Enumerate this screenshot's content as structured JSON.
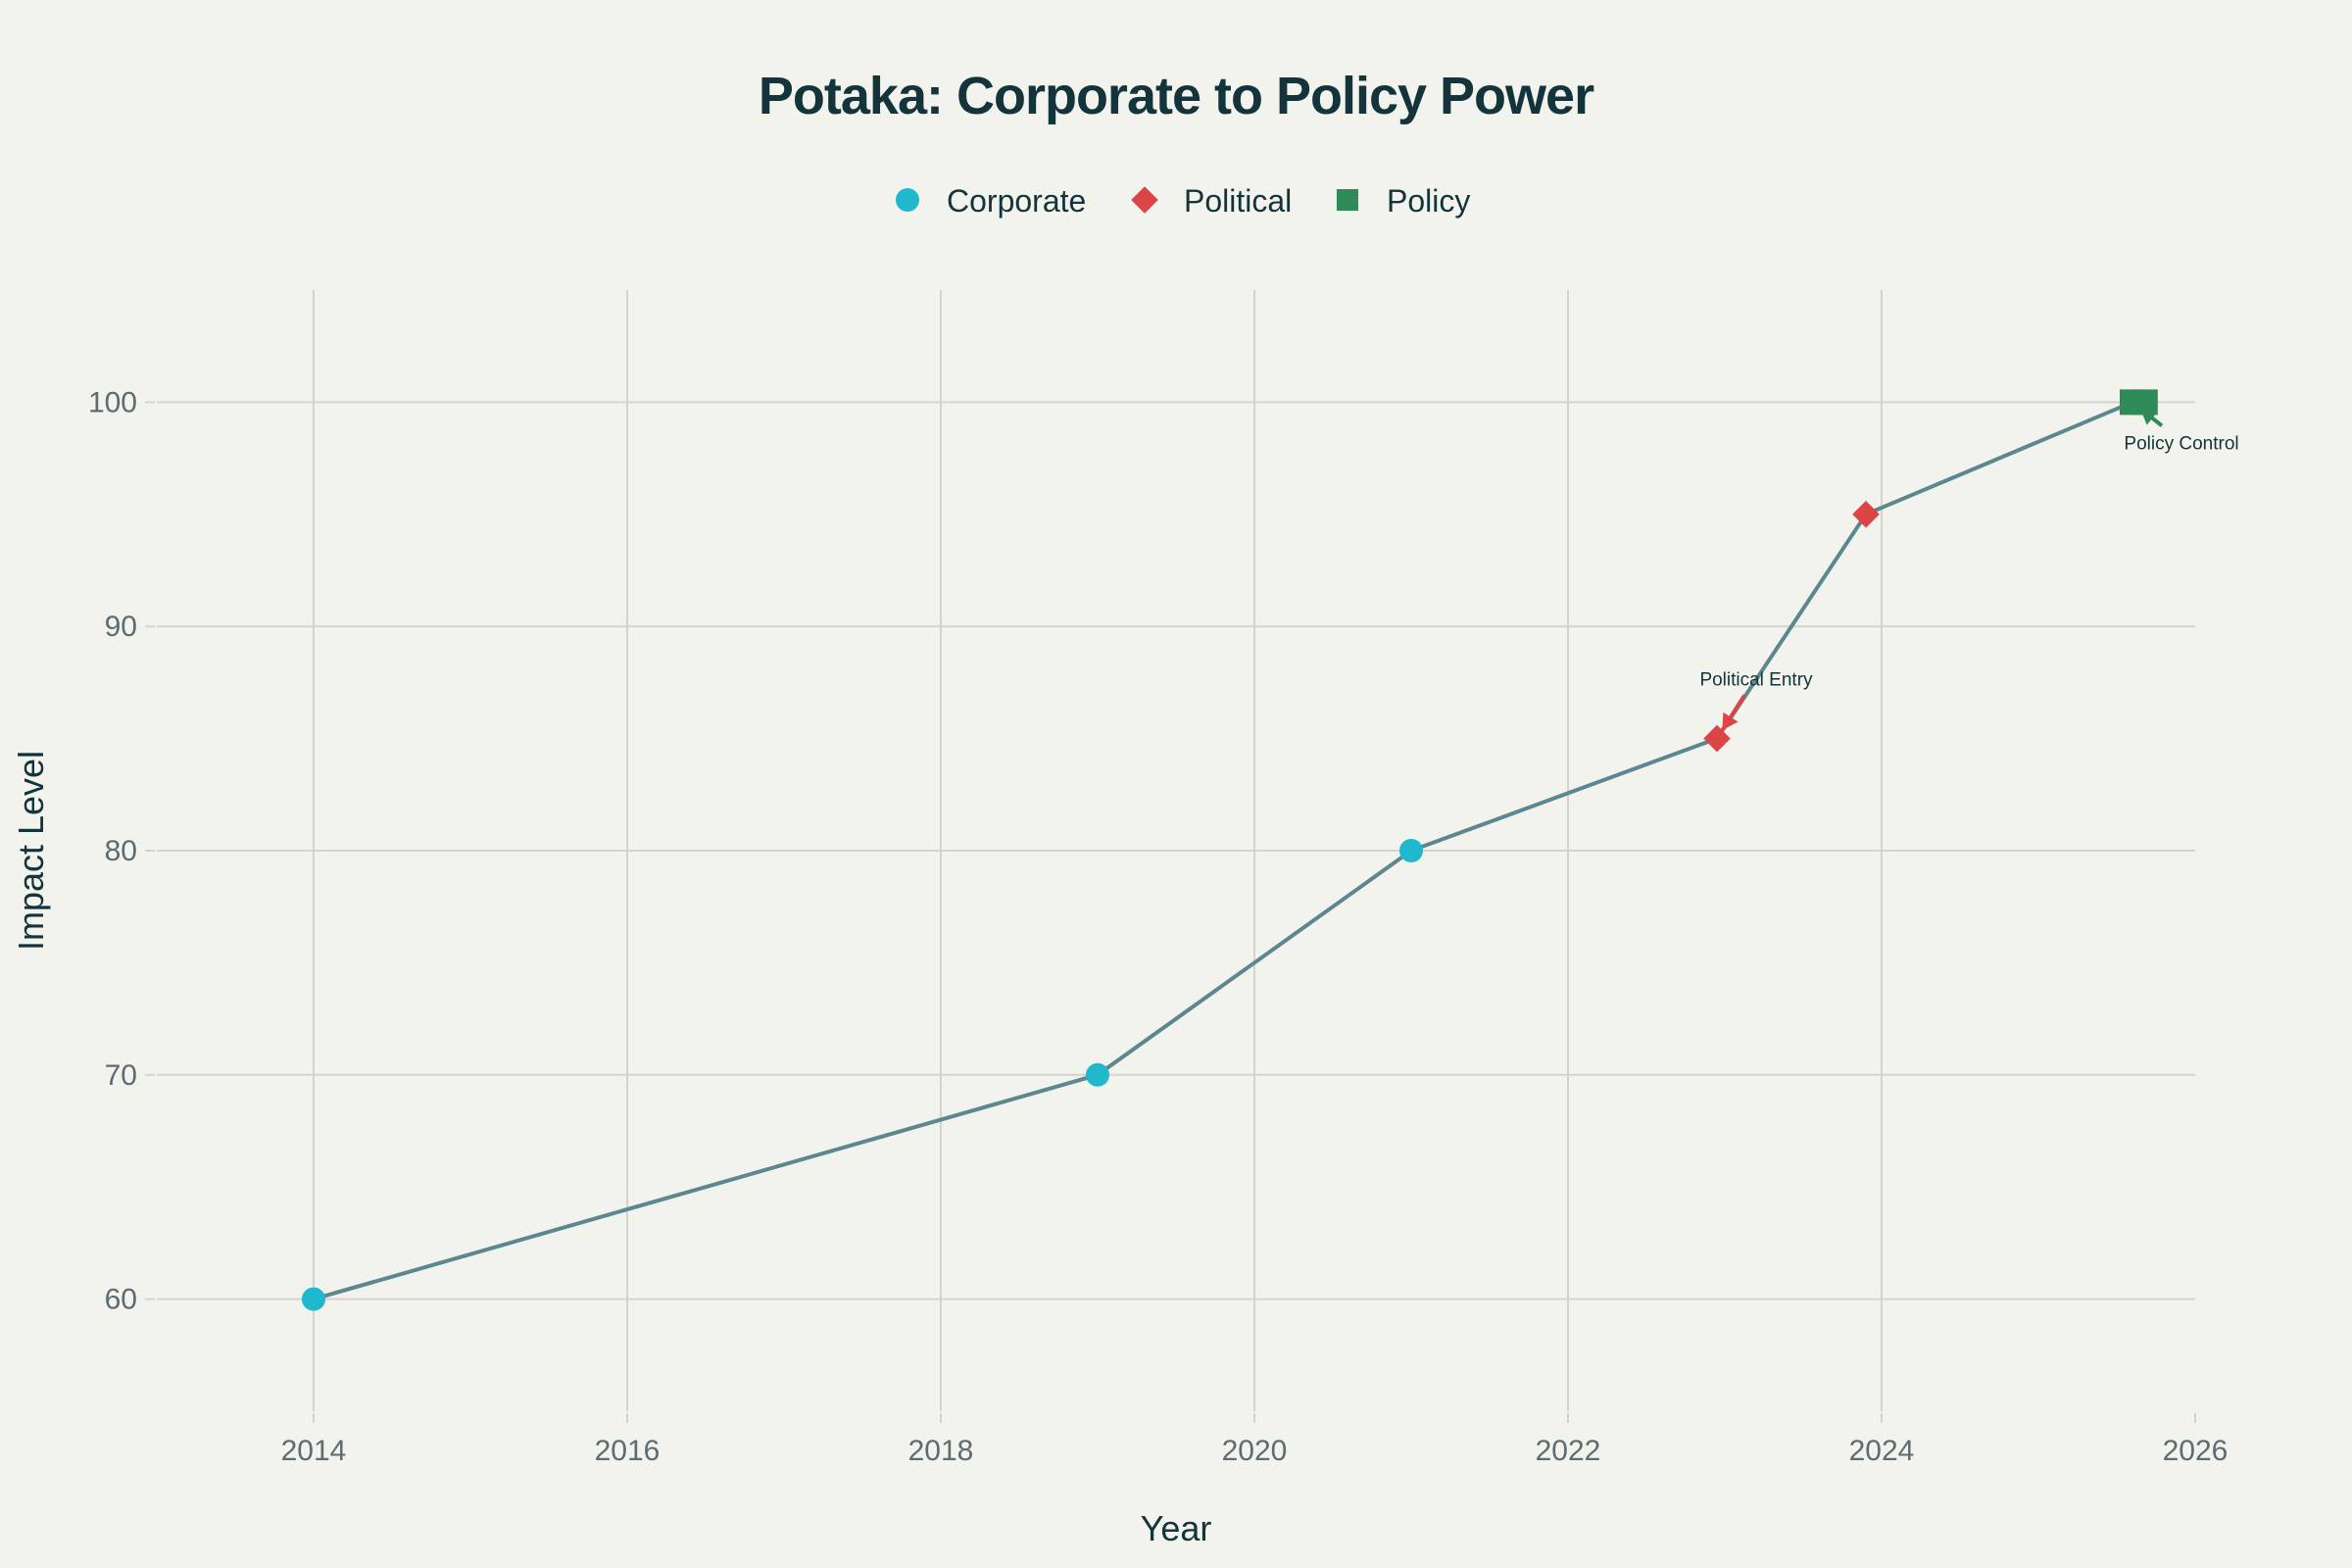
{
  "chart_data": {
    "type": "line",
    "title": "Potaka: Corporate to Policy Power",
    "xlabel": "Year",
    "ylabel": "Impact Level",
    "xlim": [
      2013,
      2026
    ],
    "ylim": [
      55,
      105
    ],
    "xticks": [
      2014,
      2016,
      2018,
      2020,
      2022,
      2024,
      2026
    ],
    "yticks": [
      60,
      70,
      80,
      90,
      100
    ],
    "grid": true,
    "legend_position": "top-center",
    "line_color": "#5d878f",
    "points": [
      {
        "x": 2014.0,
        "y": 60,
        "category": "Corporate"
      },
      {
        "x": 2019.0,
        "y": 70,
        "category": "Corporate"
      },
      {
        "x": 2021.0,
        "y": 80,
        "category": "Corporate"
      },
      {
        "x": 2022.95,
        "y": 85,
        "category": "Political"
      },
      {
        "x": 2023.9,
        "y": 95,
        "category": "Political"
      },
      {
        "x": 2025.6,
        "y": 100,
        "category": "Policy"
      },
      {
        "x": 2025.68,
        "y": 100,
        "category": "Policy"
      }
    ],
    "series": [
      {
        "name": "Corporate",
        "marker": "circle",
        "color": "#1fb8cd"
      },
      {
        "name": "Political",
        "marker": "diamond",
        "color": "#db4545"
      },
      {
        "name": "Policy",
        "marker": "square",
        "color": "#2e8b57"
      }
    ],
    "annotations": [
      {
        "text": "Political Entry",
        "x": 2022.95,
        "y": 85,
        "arrow_color": "#db4545",
        "placement": "above-right"
      },
      {
        "text": "Policy Control",
        "x": 2025.6,
        "y": 100,
        "arrow_color": "#2e8b57",
        "placement": "below-right"
      }
    ]
  }
}
